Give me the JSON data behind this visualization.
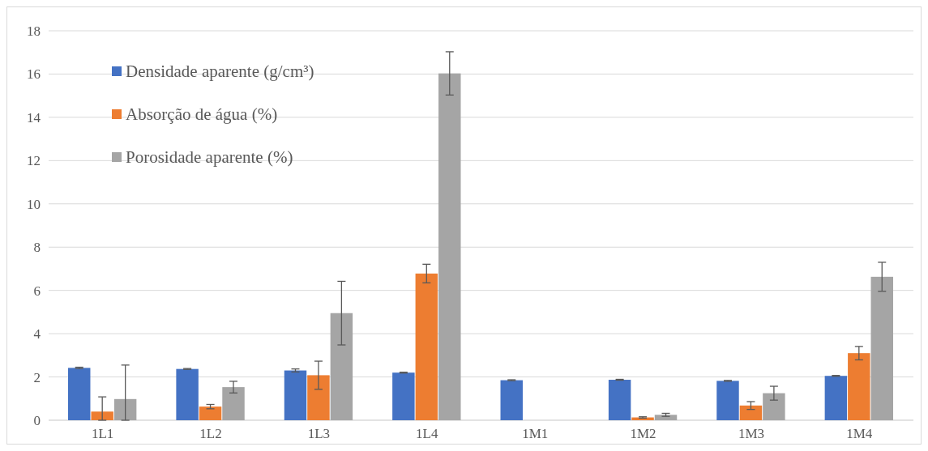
{
  "chart_data": {
    "type": "bar",
    "categories": [
      "1L1",
      "1L2",
      "1L3",
      "1L4",
      "1M1",
      "1M2",
      "1M3",
      "1M4"
    ],
    "series": [
      {
        "name": "Densidade aparente (g/cm³)",
        "color": "#4472c4",
        "values": [
          2.42,
          2.37,
          2.3,
          2.2,
          1.85,
          1.87,
          1.82,
          2.05
        ],
        "errors": [
          0.03,
          0.02,
          0.07,
          0.02,
          0.02,
          0.02,
          0.02,
          0.02
        ]
      },
      {
        "name": "Absorção de água (%)",
        "color": "#ed7d31",
        "values": [
          0.4,
          0.63,
          2.08,
          6.78,
          null,
          0.13,
          0.68,
          3.1
        ],
        "errors": [
          [
            0,
            1.08
          ],
          0.1,
          0.65,
          0.43,
          null,
          0.03,
          0.18,
          0.31
        ]
      },
      {
        "name": "Porosidade aparente (%)",
        "color": "#a5a5a5",
        "values": [
          0.98,
          1.53,
          4.95,
          16.03,
          null,
          0.25,
          1.25,
          6.63
        ],
        "errors": [
          [
            0,
            2.55
          ],
          0.27,
          1.47,
          1.0,
          null,
          0.07,
          0.32,
          0.67
        ]
      }
    ],
    "ylim": [
      0,
      18
    ],
    "yticks": [
      0,
      2,
      4,
      6,
      8,
      10,
      12,
      14,
      16,
      18
    ],
    "grid": "y",
    "legend": "top left"
  }
}
